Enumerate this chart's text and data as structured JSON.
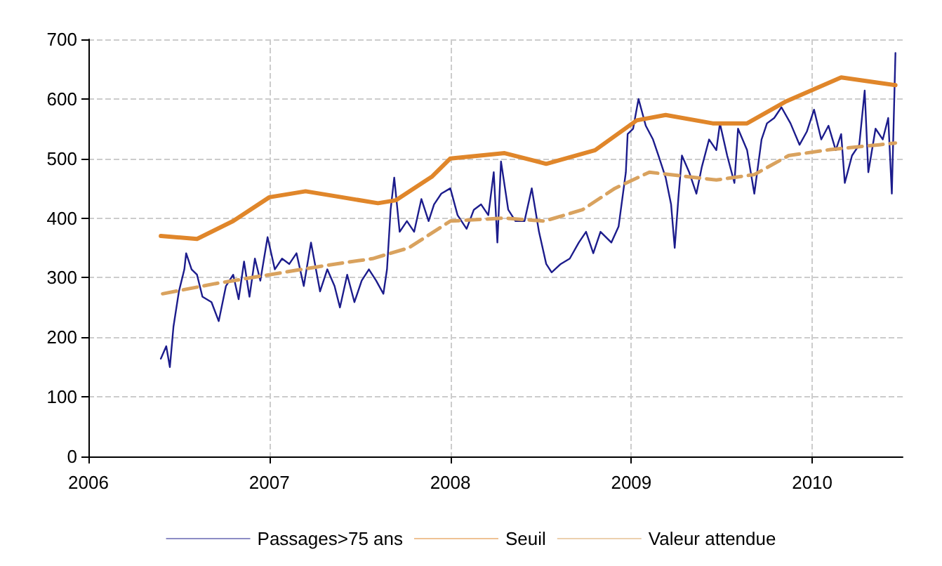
{
  "chart_data": {
    "type": "line",
    "xlim": [
      2006,
      2010.5
    ],
    "xticks": [
      2006,
      2007,
      2008,
      2009,
      2010
    ],
    "ylim": [
      0,
      700
    ],
    "yticks": [
      0,
      100,
      200,
      300,
      400,
      500,
      600,
      700
    ],
    "grid": true,
    "legend": "bottom",
    "marker": "none",
    "series": [
      {
        "name": "Passages>75 ans",
        "color": "#1c1c8c",
        "line_style": "solid",
        "x": [
          2006.4,
          2006.43,
          2006.45,
          2006.47,
          2006.5,
          2006.53,
          2006.54,
          2006.57,
          2006.6,
          2006.63,
          2006.68,
          2006.72,
          2006.76,
          2006.8,
          2006.83,
          2006.86,
          2006.89,
          2006.92,
          2006.95,
          2006.99,
          2007.03,
          2007.07,
          2007.11,
          2007.15,
          2007.19,
          2007.23,
          2007.28,
          2007.32,
          2007.36,
          2007.39,
          2007.43,
          2007.47,
          2007.51,
          2007.55,
          2007.59,
          2007.63,
          2007.65,
          2007.67,
          2007.69,
          2007.72,
          2007.76,
          2007.8,
          2007.84,
          2007.88,
          2007.91,
          2007.95,
          2008.0,
          2008.04,
          2008.09,
          2008.13,
          2008.17,
          2008.21,
          2008.24,
          2008.26,
          2008.28,
          2008.32,
          2008.36,
          2008.41,
          2008.45,
          2008.49,
          2008.53,
          2008.56,
          2008.61,
          2008.66,
          2008.71,
          2008.75,
          2008.79,
          2008.83,
          2008.89,
          2008.93,
          2008.97,
          2008.98,
          2009.01,
          2009.04,
          2009.08,
          2009.12,
          2009.15,
          2009.19,
          2009.22,
          2009.24,
          2009.26,
          2009.28,
          2009.32,
          2009.36,
          2009.39,
          2009.43,
          2009.47,
          2009.49,
          2009.53,
          2009.57,
          2009.59,
          2009.64,
          2009.68,
          2009.72,
          2009.75,
          2009.79,
          2009.83,
          2009.88,
          2009.93,
          2009.97,
          2010.01,
          2010.05,
          2010.09,
          2010.13,
          2010.16,
          2010.18,
          2010.22,
          2010.26,
          2010.29,
          2010.31,
          2010.35,
          2010.39,
          2010.42,
          2010.44,
          2010.46
        ],
        "values": [
          164,
          185,
          150,
          218,
          277,
          314,
          341,
          314,
          305,
          268,
          259,
          227,
          286,
          305,
          264,
          327,
          268,
          332,
          295,
          368,
          314,
          332,
          323,
          341,
          286,
          359,
          277,
          314,
          286,
          250,
          305,
          259,
          295,
          314,
          295,
          273,
          314,
          414,
          468,
          377,
          395,
          377,
          432,
          395,
          423,
          441,
          450,
          405,
          382,
          414,
          423,
          405,
          477,
          359,
          495,
          414,
          395,
          395,
          450,
          377,
          323,
          309,
          323,
          332,
          359,
          377,
          341,
          377,
          359,
          386,
          477,
          541,
          550,
          600,
          555,
          532,
          505,
          468,
          423,
          350,
          432,
          505,
          477,
          441,
          486,
          532,
          514,
          559,
          505,
          459,
          550,
          514,
          441,
          532,
          559,
          568,
          586,
          559,
          523,
          545,
          582,
          532,
          555,
          514,
          541,
          459,
          505,
          523,
          614,
          477,
          550,
          532,
          568,
          441,
          677
        ]
      },
      {
        "name": "Seuil",
        "color": "#e0862a",
        "line_style": "solid",
        "x": [
          2006.4,
          2006.6,
          2006.8,
          2007.0,
          2007.2,
          2007.4,
          2007.6,
          2007.7,
          2007.9,
          2008.0,
          2008.3,
          2008.53,
          2008.8,
          2009.03,
          2009.19,
          2009.45,
          2009.64,
          2009.85,
          2010.16,
          2010.37,
          2010.46
        ],
        "values": [
          370,
          365,
          395,
          435,
          445,
          435,
          425,
          430,
          470,
          500,
          509,
          491,
          514,
          564,
          573,
          559,
          559,
          595,
          636,
          627,
          623
        ]
      },
      {
        "name": "Valeur attendue",
        "color": "#d9a25e",
        "line_style": "dashed",
        "x": [
          2006.41,
          2006.7,
          2007.0,
          2007.3,
          2007.57,
          2007.77,
          2008.0,
          2008.3,
          2008.52,
          2008.73,
          2008.91,
          2009.1,
          2009.47,
          2009.68,
          2009.87,
          2010.1,
          2010.37,
          2010.46
        ],
        "values": [
          273,
          290,
          305,
          320,
          332,
          350,
          395,
          400,
          395,
          414,
          450,
          477,
          464,
          473,
          505,
          515,
          523,
          526
        ]
      }
    ]
  }
}
